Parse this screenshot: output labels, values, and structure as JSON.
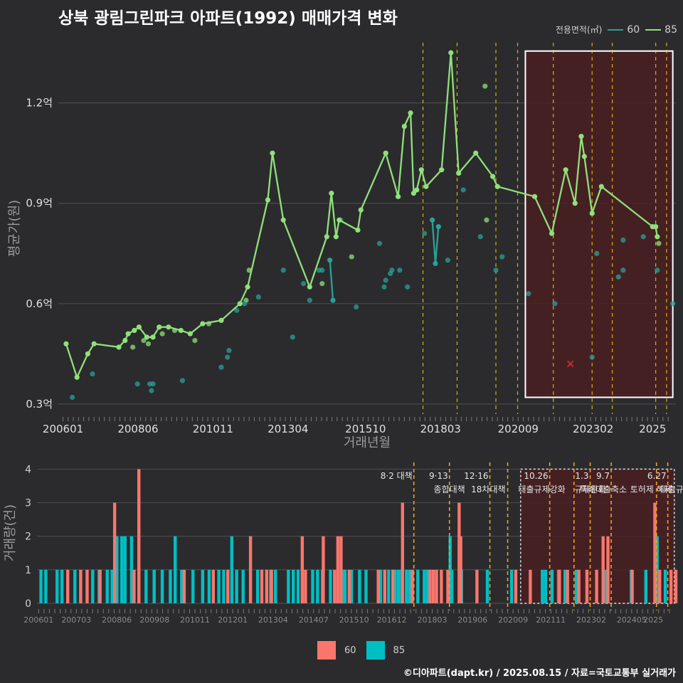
{
  "title": "상북 광림그린파크 아파트(1992) 매매가격 변화",
  "footer": "©디아파트(dapt.kr) / 2025.08.15 / 자료=국토교통부 실거래가",
  "colors": {
    "s60": "#2aa198",
    "s85": "#8fe07a",
    "bar60": "#f8766d",
    "bar85": "#00bfc4",
    "bg": "#2b2b2d",
    "grid": "#4a4a4c",
    "event": "#ffd400",
    "highlight": "#4a1f22"
  },
  "legend_top": {
    "title": "전용면적(㎡)",
    "items": [
      {
        "label": "60"
      },
      {
        "label": "85"
      }
    ]
  },
  "legend_bottom": {
    "items": [
      {
        "label": "60"
      },
      {
        "label": "85"
      }
    ]
  },
  "chart_data": [
    {
      "type": "line",
      "xlabel": "거래년월",
      "ylabel": "평균가(원)",
      "x_ticks": [
        "200601",
        "200806",
        "201011",
        "201304",
        "201510",
        "201803",
        "202009",
        "202302",
        "2025"
      ],
      "y_ticks": [
        {
          "value": 0.3,
          "label": "0.3억"
        },
        {
          "value": 0.6,
          "label": "0.6억"
        },
        {
          "value": 0.9,
          "label": "0.9억"
        },
        {
          "value": 1.2,
          "label": "1.2억"
        }
      ],
      "ylim": [
        0.27,
        1.38
      ],
      "xlim": [
        2005.85,
        2025.75
      ],
      "grid": true,
      "highlight_range": [
        2020.9,
        2025.65
      ],
      "event_lines": [
        2017.6,
        2018.7,
        2019.95,
        2020.65,
        2021.8,
        2023.05,
        2023.7,
        2025.1,
        2025.45
      ],
      "series": [
        {
          "name": "85",
          "points": [
            [
              2006.1,
              0.48
            ],
            [
              2006.45,
              0.38
            ],
            [
              2006.8,
              0.45
            ],
            [
              2007.0,
              0.48
            ],
            [
              2007.8,
              0.47
            ],
            [
              2008.0,
              0.49
            ],
            [
              2008.1,
              0.51
            ],
            [
              2008.3,
              0.52
            ],
            [
              2008.45,
              0.53
            ],
            [
              2008.7,
              0.5
            ],
            [
              2008.9,
              0.5
            ],
            [
              2009.1,
              0.53
            ],
            [
              2009.4,
              0.53
            ],
            [
              2009.8,
              0.52
            ],
            [
              2010.1,
              0.51
            ],
            [
              2010.5,
              0.54
            ],
            [
              2011.1,
              0.55
            ],
            [
              2011.7,
              0.6
            ],
            [
              2011.95,
              0.65
            ],
            [
              2012.6,
              0.91
            ],
            [
              2012.75,
              1.05
            ],
            [
              2013.1,
              0.85
            ],
            [
              2013.95,
              0.65
            ],
            [
              2014.5,
              0.8
            ],
            [
              2014.65,
              0.93
            ],
            [
              2014.8,
              0.8
            ],
            [
              2014.9,
              0.85
            ],
            [
              2015.5,
              0.82
            ],
            [
              2015.6,
              0.88
            ],
            [
              2016.4,
              1.05
            ],
            [
              2016.8,
              0.92
            ],
            [
              2017.0,
              1.13
            ],
            [
              2017.2,
              1.17
            ],
            [
              2017.3,
              0.93
            ],
            [
              2017.4,
              0.94
            ],
            [
              2017.55,
              1.0
            ],
            [
              2017.7,
              0.95
            ],
            [
              2018.2,
              1.0
            ],
            [
              2018.5,
              1.35
            ],
            [
              2018.75,
              0.99
            ],
            [
              2019.3,
              1.05
            ],
            [
              2019.85,
              0.98
            ],
            [
              2020.0,
              0.95
            ],
            [
              2021.2,
              0.92
            ],
            [
              2021.75,
              0.81
            ],
            [
              2022.2,
              1.0
            ],
            [
              2022.5,
              0.9
            ],
            [
              2022.7,
              1.1
            ],
            [
              2022.8,
              1.04
            ],
            [
              2023.05,
              0.87
            ],
            [
              2023.35,
              0.95
            ],
            [
              2025.0,
              0.83
            ],
            [
              2025.1,
              0.83
            ],
            [
              2025.15,
              0.8
            ]
          ],
          "extra_points": [
            [
              2008.25,
              0.47
            ],
            [
              2008.6,
              0.49
            ],
            [
              2008.75,
              0.48
            ],
            [
              2009.2,
              0.51
            ],
            [
              2009.6,
              0.52
            ],
            [
              2010.25,
              0.49
            ],
            [
              2010.7,
              0.54
            ],
            [
              2011.9,
              0.61
            ],
            [
              2012.0,
              0.7
            ],
            [
              2014.35,
              0.66
            ],
            [
              2015.3,
              0.74
            ],
            [
              2019.6,
              1.25
            ],
            [
              2019.65,
              0.85
            ],
            [
              2025.2,
              0.78
            ]
          ]
        },
        {
          "name": "60",
          "points": [
            [
              2014.6,
              0.73
            ],
            [
              2014.7,
              0.61
            ],
            [
              2017.9,
              0.85
            ],
            [
              2018.0,
              0.72
            ],
            [
              2018.1,
              0.83
            ]
          ],
          "extra_points": [
            [
              2006.3,
              0.32
            ],
            [
              2006.95,
              0.39
            ],
            [
              2008.4,
              0.36
            ],
            [
              2008.8,
              0.36
            ],
            [
              2008.85,
              0.34
            ],
            [
              2008.9,
              0.36
            ],
            [
              2009.85,
              0.37
            ],
            [
              2011.1,
              0.41
            ],
            [
              2011.3,
              0.44
            ],
            [
              2011.35,
              0.46
            ],
            [
              2011.6,
              0.58
            ],
            [
              2011.85,
              0.6
            ],
            [
              2012.3,
              0.62
            ],
            [
              2013.1,
              0.7
            ],
            [
              2013.4,
              0.5
            ],
            [
              2013.75,
              0.66
            ],
            [
              2013.95,
              0.61
            ],
            [
              2014.25,
              0.7
            ],
            [
              2014.35,
              0.7
            ],
            [
              2014.95,
              0.85
            ],
            [
              2015.45,
              0.59
            ],
            [
              2016.2,
              0.78
            ],
            [
              2016.35,
              0.65
            ],
            [
              2016.4,
              0.67
            ],
            [
              2016.55,
              0.69
            ],
            [
              2016.6,
              0.7
            ],
            [
              2016.85,
              0.7
            ],
            [
              2017.1,
              0.65
            ],
            [
              2017.65,
              0.81
            ],
            [
              2018.4,
              0.73
            ],
            [
              2018.9,
              0.94
            ],
            [
              2019.45,
              0.8
            ],
            [
              2019.95,
              0.7
            ],
            [
              2020.15,
              0.74
            ],
            [
              2021.0,
              0.63
            ],
            [
              2021.85,
              0.6
            ],
            [
              2023.05,
              0.44
            ],
            [
              2023.2,
              0.75
            ],
            [
              2023.9,
              0.68
            ],
            [
              2024.05,
              0.79
            ],
            [
              2024.05,
              0.7
            ],
            [
              2024.7,
              0.8
            ],
            [
              2025.15,
              0.7
            ],
            [
              2025.65,
              0.6
            ]
          ]
        }
      ],
      "markers": [
        [
          2022.35,
          0.42
        ]
      ]
    },
    {
      "type": "bar",
      "ylabel": "거래량(건)",
      "ylim": [
        0,
        4.2
      ],
      "y_ticks": [
        0,
        1,
        2,
        3,
        4
      ],
      "x_ticks": [
        "200601",
        "200703",
        "200806",
        "200908",
        "201011",
        "201201",
        "201304",
        "201407",
        "201510",
        "201612",
        "201803",
        "201906",
        "202009",
        "202111",
        "202302",
        "202405",
        "2025"
      ],
      "highlight_range": [
        2020.9,
        2025.65
      ],
      "event_lines": [
        {
          "x": 2017.6,
          "label1": "8·2 대책",
          "label2": ""
        },
        {
          "x": 2018.7,
          "label1": "9·13",
          "label2": "종합대책"
        },
        {
          "x": 2019.95,
          "label1": "12·16",
          "label2": "18차대책"
        },
        {
          "x": 2020.5,
          "label1": "",
          "label2": ""
        },
        {
          "x": 2021.8,
          "label1": "10.26",
          "label2": "대출규제강화"
        },
        {
          "x": 2022.55,
          "label1": "",
          "label2": ""
        },
        {
          "x": 2023.05,
          "label1": "1.3",
          "label2": "규제완화"
        },
        {
          "x": 2023.7,
          "label1": "9.7",
          "label2": "특례대출축소"
        },
        {
          "x": 2025.1,
          "label1": "",
          "label2": "토허제 해제"
        },
        {
          "x": 2025.45,
          "label1": "6.27",
          "label2": "대출규"
        }
      ],
      "bars60": [
        [
          2006.9,
          1
        ],
        [
          2007.3,
          1
        ],
        [
          2007.5,
          1
        ],
        [
          2007.9,
          1
        ],
        [
          2008.35,
          3
        ],
        [
          2008.95,
          1
        ],
        [
          2009.1,
          4
        ],
        [
          2010.5,
          1
        ],
        [
          2011.4,
          1
        ],
        [
          2011.85,
          1
        ],
        [
          2012.55,
          2
        ],
        [
          2012.9,
          1
        ],
        [
          2013.05,
          1
        ],
        [
          2013.2,
          1
        ],
        [
          2014.15,
          2
        ],
        [
          2014.25,
          1
        ],
        [
          2014.8,
          2
        ],
        [
          2015.15,
          1
        ],
        [
          2015.25,
          2
        ],
        [
          2015.35,
          2
        ],
        [
          2015.6,
          1
        ],
        [
          2016.5,
          1
        ],
        [
          2016.7,
          1
        ],
        [
          2016.95,
          1
        ],
        [
          2017.25,
          3
        ],
        [
          2017.55,
          1
        ],
        [
          2018.1,
          1
        ],
        [
          2018.2,
          1
        ],
        [
          2018.3,
          1
        ],
        [
          2018.45,
          1
        ],
        [
          2018.65,
          1
        ],
        [
          2019.0,
          3
        ],
        [
          2019.05,
          2
        ],
        [
          2019.55,
          1
        ],
        [
          2020.75,
          1
        ],
        [
          2021.2,
          1
        ],
        [
          2022.1,
          1
        ],
        [
          2022.35,
          1
        ],
        [
          2022.7,
          1
        ],
        [
          2022.95,
          1
        ],
        [
          2023.25,
          1
        ],
        [
          2023.45,
          2
        ],
        [
          2023.6,
          2
        ],
        [
          2024.35,
          1
        ],
        [
          2025.05,
          3
        ],
        [
          2025.2,
          1
        ],
        [
          2025.55,
          1
        ],
        [
          2025.7,
          1
        ]
      ],
      "bars85": [
        [
          2006.05,
          1
        ],
        [
          2006.2,
          1
        ],
        [
          2006.55,
          1
        ],
        [
          2006.7,
          1
        ],
        [
          2007.1,
          1
        ],
        [
          2007.65,
          1
        ],
        [
          2007.85,
          1
        ],
        [
          2008.1,
          1
        ],
        [
          2008.25,
          1
        ],
        [
          2008.4,
          2
        ],
        [
          2008.55,
          2
        ],
        [
          2008.65,
          2
        ],
        [
          2008.85,
          2
        ],
        [
          2009.3,
          1
        ],
        [
          2009.55,
          1
        ],
        [
          2009.8,
          1
        ],
        [
          2010.05,
          1
        ],
        [
          2010.2,
          2
        ],
        [
          2010.4,
          1
        ],
        [
          2010.75,
          1
        ],
        [
          2011.05,
          1
        ],
        [
          2011.25,
          1
        ],
        [
          2011.55,
          1
        ],
        [
          2011.7,
          1
        ],
        [
          2011.95,
          2
        ],
        [
          2012.1,
          1
        ],
        [
          2012.3,
          1
        ],
        [
          2012.75,
          1
        ],
        [
          2013.15,
          1
        ],
        [
          2013.3,
          1
        ],
        [
          2013.7,
          1
        ],
        [
          2013.85,
          1
        ],
        [
          2014.0,
          1
        ],
        [
          2014.45,
          1
        ],
        [
          2014.6,
          1
        ],
        [
          2014.75,
          1
        ],
        [
          2015.0,
          1
        ],
        [
          2015.4,
          1
        ],
        [
          2015.45,
          1
        ],
        [
          2015.65,
          1
        ],
        [
          2015.9,
          1
        ],
        [
          2016.1,
          1
        ],
        [
          2016.55,
          1
        ],
        [
          2016.8,
          1
        ],
        [
          2017.0,
          1
        ],
        [
          2017.1,
          1
        ],
        [
          2017.2,
          1
        ],
        [
          2017.35,
          1
        ],
        [
          2017.45,
          1
        ],
        [
          2017.7,
          1
        ],
        [
          2017.9,
          1
        ],
        [
          2018.0,
          1
        ],
        [
          2018.7,
          2
        ],
        [
          2018.75,
          1
        ],
        [
          2019.05,
          1
        ],
        [
          2019.85,
          1
        ],
        [
          2020.6,
          1
        ],
        [
          2021.55,
          1
        ],
        [
          2021.65,
          1
        ],
        [
          2021.85,
          1
        ],
        [
          2022.05,
          1
        ],
        [
          2022.25,
          1
        ],
        [
          2022.6,
          1
        ],
        [
          2023.5,
          1
        ],
        [
          2024.3,
          1
        ],
        [
          2024.75,
          1
        ],
        [
          2025.1,
          2
        ],
        [
          2025.35,
          1
        ]
      ]
    }
  ]
}
